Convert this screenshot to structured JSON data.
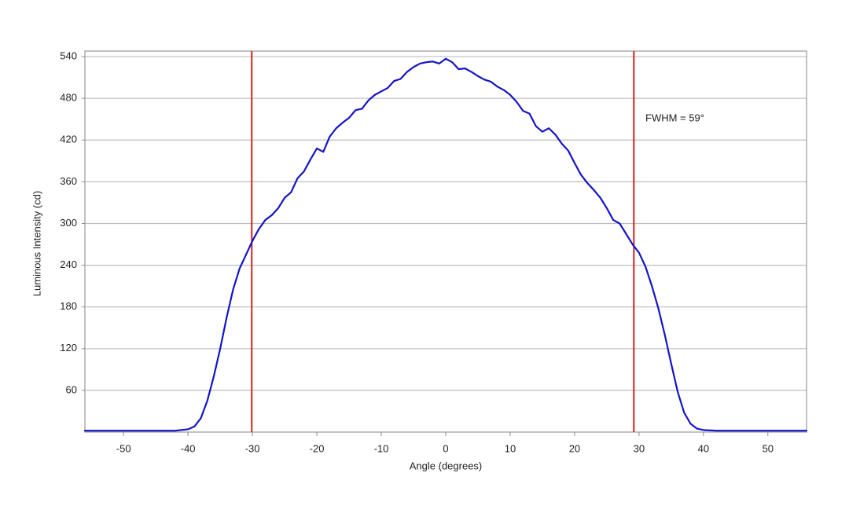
{
  "chart_data": {
    "type": "line",
    "x_label": "Angle (degrees)",
    "y_label": "Luminous Intensity (cd)",
    "annotation": "FWHM = 59°",
    "x": [
      -56,
      -50,
      -45,
      -42,
      -40,
      -39,
      -38,
      -37,
      -36,
      -35,
      -34,
      -33,
      -32,
      -31,
      -30,
      -29,
      -28,
      -27,
      -26,
      -25,
      -24,
      -23,
      -22,
      -21,
      -20,
      -19,
      -18,
      -17,
      -16,
      -15,
      -14,
      -13,
      -12,
      -11,
      -10,
      -9,
      -8,
      -7,
      -6,
      -5,
      -4,
      -3,
      -2,
      -1,
      0,
      1,
      2,
      3,
      4,
      5,
      6,
      7,
      8,
      9,
      10,
      11,
      12,
      13,
      14,
      15,
      16,
      17,
      18,
      19,
      20,
      21,
      22,
      23,
      24,
      25,
      26,
      27,
      28,
      29,
      30,
      31,
      32,
      33,
      34,
      35,
      36,
      37,
      38,
      39,
      40,
      42,
      45,
      50,
      56
    ],
    "series": [
      {
        "color": "#1414c8",
        "values": [
          2,
          2,
          2,
          2,
          4,
          8,
          20,
          45,
          80,
          120,
          165,
          205,
          235,
          255,
          275,
          292,
          305,
          312,
          322,
          337,
          345,
          365,
          375,
          392,
          408,
          403,
          425,
          437,
          445,
          452,
          463,
          465,
          477,
          485,
          490,
          495,
          505,
          508,
          518,
          525,
          530,
          532,
          533,
          530,
          537,
          532,
          522,
          523,
          518,
          512,
          507,
          504,
          497,
          492,
          485,
          475,
          462,
          458,
          440,
          432,
          437,
          428,
          415,
          405,
          387,
          370,
          358,
          348,
          337,
          322,
          305,
          300,
          285,
          270,
          258,
          238,
          210,
          178,
          140,
          98,
          58,
          28,
          12,
          5,
          3,
          2,
          2,
          2,
          2
        ]
      }
    ],
    "reference_lines": {
      "color": "#d42020",
      "x": [
        -30.1,
        29.2
      ]
    },
    "xlim": [
      -56,
      56
    ],
    "ylim": [
      0,
      548
    ],
    "xticks": [
      -50,
      -40,
      -30,
      -20,
      -10,
      0,
      10,
      20,
      30,
      40,
      50
    ],
    "yticks": [
      60,
      120,
      180,
      240,
      300,
      360,
      420,
      480,
      540
    ],
    "grid": true
  }
}
